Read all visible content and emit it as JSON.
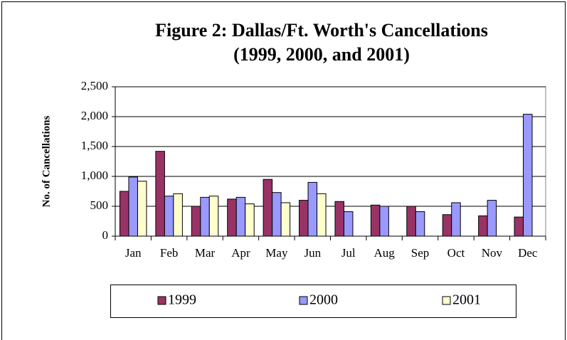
{
  "chart_data": {
    "type": "bar",
    "title": "Figure 2:  Dallas/Ft. Worth's Cancellations",
    "subtitle": "(1999, 2000, and 2001)",
    "y_label": "No. of Cancellations",
    "categories": [
      "Jan",
      "Feb",
      "Mar",
      "Apr",
      "May",
      "Jun",
      "Jul",
      "Aug",
      "Sep",
      "Oct",
      "Nov",
      "Dec"
    ],
    "series": [
      {
        "name": "1999",
        "color": "#993366",
        "values": [
          750,
          1420,
          500,
          620,
          950,
          600,
          580,
          520,
          500,
          360,
          340,
          320
        ]
      },
      {
        "name": "2000",
        "color": "#9999FF",
        "values": [
          990,
          670,
          650,
          650,
          730,
          900,
          410,
          500,
          410,
          560,
          600,
          2040
        ]
      },
      {
        "name": "2001",
        "color": "#FFFFCC",
        "values": [
          920,
          710,
          670,
          540,
          560,
          710,
          null,
          null,
          null,
          null,
          null,
          null
        ]
      }
    ],
    "ylim": [
      0,
      2500
    ],
    "yticks": [
      0,
      500,
      {
        "value": 1000,
        "label": "1,000"
      },
      {
        "value": 1500,
        "label": "1,500"
      },
      {
        "value": 2000,
        "label": "2,000"
      },
      {
        "value": 2500,
        "label": "2,500"
      }
    ],
    "grid": true,
    "legend": "bottom"
  }
}
